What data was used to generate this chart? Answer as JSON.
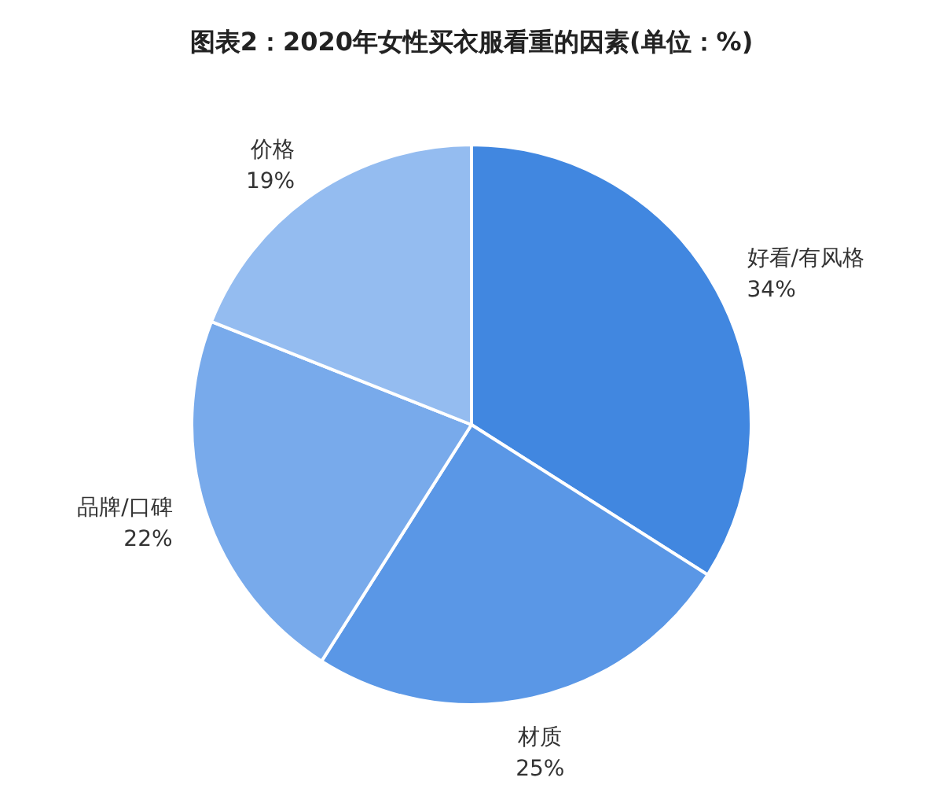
{
  "chart_data": {
    "type": "pie",
    "title": "图表2：2020年女性买衣服看重的因素(单位：%)",
    "categories": [
      "好看/有风格",
      "材质",
      "品牌/口碑",
      "价格"
    ],
    "values": [
      34,
      25,
      22,
      19
    ],
    "colors": [
      "#4187e0",
      "#5a97e6",
      "#78aaeb",
      "#94bcf0"
    ],
    "value_labels": [
      "34%",
      "25%",
      "22%",
      "19%"
    ]
  }
}
